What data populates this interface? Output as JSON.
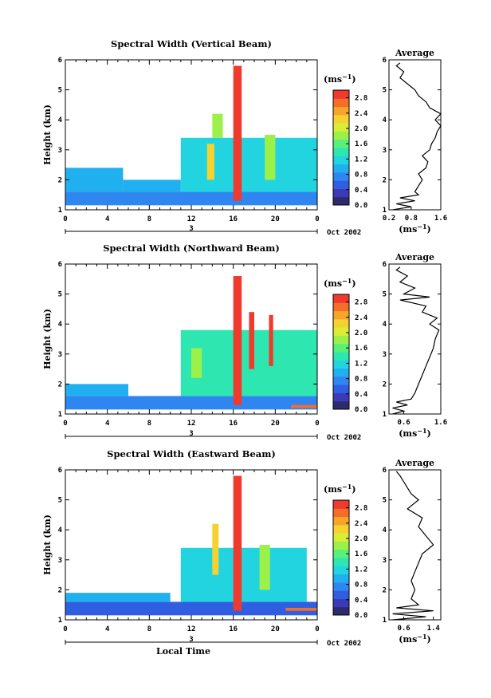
{
  "chart_data": [
    {
      "type": "heatmap",
      "title": "Spectral Width (Vertical Beam)",
      "ylabel": "Height (km)",
      "xlabel": "",
      "x_ticks": [
        "0",
        "4",
        "8",
        "12",
        "16",
        "20",
        "0"
      ],
      "y_ticks": [
        "1",
        "2",
        "3",
        "4",
        "5",
        "6"
      ],
      "xlim": [
        0,
        24
      ],
      "ylim": [
        1,
        6
      ],
      "date_day": "3",
      "date_label": "Oct 2002",
      "colorbar": {
        "unit": "(ms",
        "unit_sup": "−1",
        "unit_close": ")",
        "ticks": [
          "0.0",
          "0.4",
          "0.8",
          "1.2",
          "1.6",
          "2.0",
          "2.4",
          "2.8"
        ],
        "range": [
          0,
          3.0
        ]
      },
      "cells": [
        {
          "t0": 0,
          "t1": 24,
          "h0": 1.15,
          "h1": 1.6,
          "v": 0.7
        },
        {
          "t0": 0,
          "t1": 5.5,
          "h0": 1.6,
          "h1": 2.4,
          "v": 1.0
        },
        {
          "t0": 5.5,
          "t1": 11,
          "h0": 1.6,
          "h1": 2.0,
          "v": 0.9
        },
        {
          "t0": 11,
          "t1": 24,
          "h0": 1.6,
          "h1": 3.4,
          "v": 1.2
        },
        {
          "t0": 14,
          "t1": 15,
          "h0": 3.4,
          "h1": 4.2,
          "v": 1.9
        },
        {
          "t0": 16,
          "t1": 16.8,
          "h0": 1.3,
          "h1": 5.8,
          "v": 3.0
        },
        {
          "t0": 13.5,
          "t1": 14.2,
          "h0": 2.0,
          "h1": 3.2,
          "v": 2.3
        },
        {
          "t0": 19,
          "t1": 20,
          "h0": 2.0,
          "h1": 3.5,
          "v": 1.8
        }
      ],
      "average": {
        "title": "Average",
        "xlabel": "(ms",
        "xlabel_sup": "−1",
        "xlabel_close": ")",
        "x_ticks": [
          "0.2",
          "0.8",
          "1.6"
        ],
        "xlim": [
          0.2,
          1.6
        ],
        "y_ticks": [
          "1",
          "2",
          "3",
          "4",
          "5",
          "6"
        ],
        "ylim": [
          1,
          6
        ],
        "h": [
          1.0,
          1.1,
          1.2,
          1.3,
          1.4,
          1.5,
          1.6,
          1.8,
          2.0,
          2.2,
          2.4,
          2.6,
          2.8,
          3.0,
          3.2,
          3.4,
          3.6,
          3.8,
          4.0,
          4.2,
          4.4,
          4.6,
          4.8,
          5.0,
          5.2,
          5.4,
          5.6,
          5.8,
          5.9
        ],
        "v": [
          0.3,
          0.8,
          0.4,
          0.9,
          0.5,
          1.0,
          0.9,
          1.0,
          1.1,
          1.0,
          1.2,
          1.25,
          1.1,
          1.3,
          1.35,
          1.45,
          1.5,
          1.6,
          1.45,
          1.6,
          1.3,
          1.2,
          1.0,
          0.9,
          0.7,
          0.5,
          0.6,
          0.4,
          0.5
        ]
      }
    },
    {
      "type": "heatmap",
      "title": "Spectral Width (Northward Beam)",
      "ylabel": "Height (km)",
      "xlabel": "",
      "x_ticks": [
        "0",
        "4",
        "8",
        "12",
        "16",
        "20",
        "0"
      ],
      "y_ticks": [
        "1",
        "2",
        "3",
        "4",
        "5",
        "6"
      ],
      "xlim": [
        0,
        24
      ],
      "ylim": [
        1,
        6
      ],
      "date_day": "3",
      "date_label": "Oct 2002",
      "colorbar": {
        "unit": "(ms",
        "unit_sup": "−1",
        "unit_close": ")",
        "ticks": [
          "0.0",
          "0.4",
          "0.8",
          "1.2",
          "1.6",
          "2.0",
          "2.4",
          "2.8"
        ],
        "range": [
          0,
          3.0
        ]
      },
      "cells": [
        {
          "t0": 0,
          "t1": 24,
          "h0": 1.15,
          "h1": 1.6,
          "v": 0.7
        },
        {
          "t0": 0,
          "t1": 6,
          "h0": 1.6,
          "h1": 2.0,
          "v": 0.9
        },
        {
          "t0": 11,
          "t1": 24,
          "h0": 1.6,
          "h1": 3.8,
          "v": 1.3
        },
        {
          "t0": 12,
          "t1": 13,
          "h0": 2.2,
          "h1": 3.2,
          "v": 1.9
        },
        {
          "t0": 16,
          "t1": 16.8,
          "h0": 1.3,
          "h1": 5.6,
          "v": 3.0
        },
        {
          "t0": 17.5,
          "t1": 18,
          "h0": 2.5,
          "h1": 4.4,
          "v": 3.0
        },
        {
          "t0": 19.4,
          "t1": 19.8,
          "h0": 2.6,
          "h1": 4.3,
          "v": 3.0
        },
        {
          "t0": 21.5,
          "t1": 24,
          "h0": 1.2,
          "h1": 1.3,
          "v": 2.7
        }
      ],
      "average": {
        "title": "Average",
        "xlabel": "(ms",
        "xlabel_sup": "−1",
        "xlabel_close": ")",
        "x_ticks": [
          "0.6",
          "1.6"
        ],
        "xlim": [
          0.2,
          1.6
        ],
        "y_ticks": [
          "1",
          "2",
          "3",
          "4",
          "5",
          "6"
        ],
        "ylim": [
          1,
          6
        ],
        "h": [
          1.0,
          1.1,
          1.2,
          1.3,
          1.4,
          1.5,
          1.7,
          2.0,
          2.3,
          2.6,
          2.9,
          3.2,
          3.5,
          3.8,
          4.0,
          4.2,
          4.4,
          4.6,
          4.8,
          4.9,
          5.0,
          5.2,
          5.4,
          5.6,
          5.8,
          5.9
        ],
        "v": [
          0.3,
          0.6,
          0.3,
          0.7,
          0.4,
          0.8,
          0.9,
          1.0,
          1.1,
          1.2,
          1.3,
          1.4,
          1.45,
          1.55,
          1.3,
          1.5,
          1.1,
          1.2,
          0.5,
          1.3,
          0.6,
          0.9,
          0.5,
          0.7,
          0.4,
          0.5
        ]
      }
    },
    {
      "type": "heatmap",
      "title": "Spectral Width (Eastward Beam)",
      "ylabel": "Height (km)",
      "xlabel": "Local Time",
      "x_ticks": [
        "0",
        "4",
        "8",
        "12",
        "16",
        "20",
        "0"
      ],
      "y_ticks": [
        "1",
        "2",
        "3",
        "4",
        "5",
        "6"
      ],
      "xlim": [
        0,
        24
      ],
      "ylim": [
        1,
        6
      ],
      "date_day": "3",
      "date_label": "Oct 2002",
      "colorbar": {
        "unit": "(ms",
        "unit_sup": "−1",
        "unit_close": ")",
        "ticks": [
          "0.0",
          "0.4",
          "0.8",
          "1.2",
          "1.6",
          "2.0",
          "2.4",
          "2.8"
        ],
        "range": [
          0,
          3.0
        ]
      },
      "cells": [
        {
          "t0": 0,
          "t1": 24,
          "h0": 1.15,
          "h1": 1.6,
          "v": 0.6
        },
        {
          "t0": 0,
          "t1": 10,
          "h0": 1.6,
          "h1": 1.9,
          "v": 0.9
        },
        {
          "t0": 11,
          "t1": 23,
          "h0": 1.6,
          "h1": 3.4,
          "v": 1.2
        },
        {
          "t0": 14,
          "t1": 14.6,
          "h0": 2.5,
          "h1": 4.2,
          "v": 2.2
        },
        {
          "t0": 16,
          "t1": 16.8,
          "h0": 1.3,
          "h1": 5.8,
          "v": 3.0
        },
        {
          "t0": 18.5,
          "t1": 19.5,
          "h0": 2.0,
          "h1": 3.5,
          "v": 1.8
        },
        {
          "t0": 21,
          "t1": 24,
          "h0": 1.3,
          "h1": 1.4,
          "v": 2.6
        }
      ],
      "average": {
        "title": "Average",
        "xlabel": "(ms",
        "xlabel_sup": "−1",
        "xlabel_close": ")",
        "x_ticks": [
          "0.6",
          "1.4"
        ],
        "xlim": [
          0.2,
          1.6
        ],
        "y_ticks": [
          "1",
          "2",
          "3",
          "4",
          "5",
          "6"
        ],
        "ylim": [
          1,
          6
        ],
        "h": [
          1.0,
          1.1,
          1.2,
          1.3,
          1.4,
          1.5,
          1.7,
          2.0,
          2.3,
          2.6,
          2.9,
          3.2,
          3.5,
          3.8,
          4.1,
          4.4,
          4.7,
          5.0,
          5.2,
          5.4,
          5.6,
          5.8,
          5.95
        ],
        "v": [
          0.3,
          1.2,
          0.3,
          1.4,
          0.4,
          1.0,
          0.8,
          0.9,
          0.8,
          0.9,
          1.0,
          1.1,
          1.4,
          1.2,
          1.0,
          1.1,
          0.7,
          1.0,
          0.8,
          0.7,
          0.6,
          0.5,
          0.4
        ]
      }
    }
  ]
}
